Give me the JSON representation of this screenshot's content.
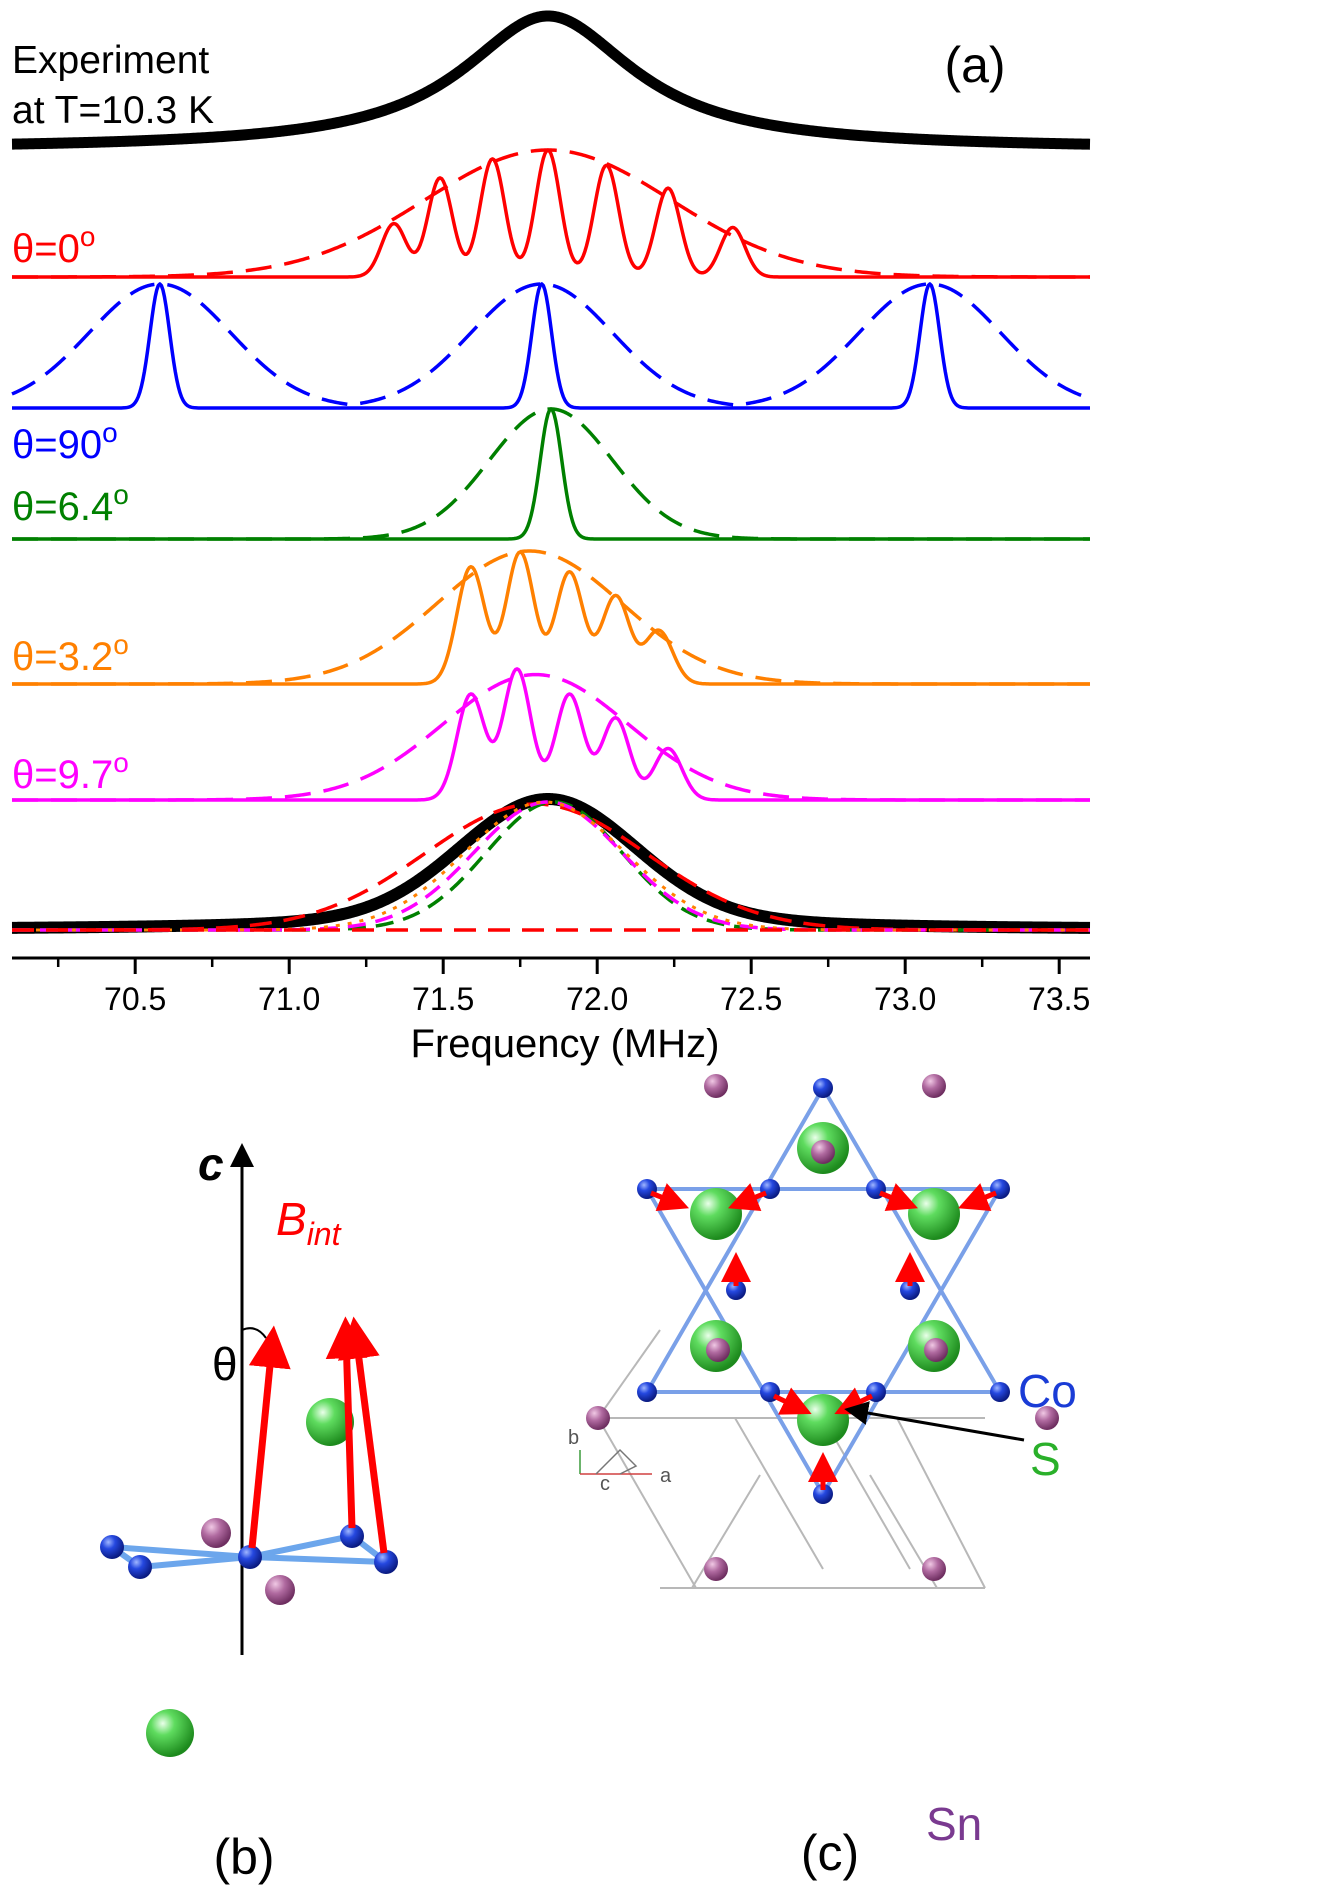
{
  "chart_data": {
    "type": "line",
    "panel_label": "(a)",
    "xlabel": "Frequency (MHz)",
    "xlim": [
      70.1,
      73.6
    ],
    "xticks": [
      70.5,
      71.0,
      71.5,
      72.0,
      72.5,
      73.0,
      73.5
    ],
    "xtick_labels": [
      "70.5",
      "71.0",
      "71.5",
      "72.0",
      "72.5",
      "73.0",
      "73.5"
    ],
    "experiment_label_line1": "Experiment",
    "experiment_label_line2": "at T=10.3 K",
    "series": [
      {
        "id": "experiment",
        "label": "",
        "color": "#000000",
        "style": "solid",
        "center": 71.84,
        "gamma": 0.34,
        "height": 1.0
      },
      {
        "id": "theta0",
        "label": "θ=0",
        "label_sup": "o",
        "color": "#ff0000",
        "dashed": {
          "center": 71.84,
          "sigma": 0.4,
          "height": 1.0
        },
        "peaks": [
          [
            71.34,
            0.42
          ],
          [
            71.49,
            0.78
          ],
          [
            71.66,
            0.93
          ],
          [
            71.84,
            1.0
          ],
          [
            72.03,
            0.88
          ],
          [
            72.23,
            0.7
          ],
          [
            72.44,
            0.39
          ]
        ],
        "peak_width": 0.04
      },
      {
        "id": "theta90",
        "label": "θ=90",
        "label_sup": "o",
        "color": "#0000ff",
        "dashed_centers": [
          70.58,
          71.82,
          73.08
        ],
        "dashed_sigma": 0.23,
        "peaks": [
          [
            70.58,
            1.0
          ],
          [
            71.82,
            1.0
          ],
          [
            73.08,
            1.0
          ]
        ],
        "peak_width": 0.032
      },
      {
        "id": "theta6.4",
        "label": "θ=6.4",
        "label_sup": "o",
        "color": "#008000",
        "dashed": {
          "center": 71.85,
          "sigma": 0.2,
          "height": 1.0
        },
        "peaks": [
          [
            71.85,
            1.0
          ]
        ],
        "peak_width": 0.035
      },
      {
        "id": "theta3.2",
        "label": "θ=3.2",
        "label_sup": "o",
        "color": "#ff8000",
        "dashed": {
          "center": 71.78,
          "sigma": 0.3,
          "height": 1.0
        },
        "peaks": [
          [
            71.59,
            0.88
          ],
          [
            71.75,
            0.99
          ],
          [
            71.91,
            0.84
          ],
          [
            72.06,
            0.66
          ],
          [
            72.2,
            0.4
          ]
        ],
        "peak_width": 0.045
      },
      {
        "id": "theta9.7",
        "label": "θ=9.7",
        "label_sup": "o",
        "color": "#ff00ff",
        "dashed": {
          "center": 71.8,
          "sigma": 0.3,
          "height": 0.95
        },
        "peaks": [
          [
            71.59,
            0.8
          ],
          [
            71.74,
            0.99
          ],
          [
            71.91,
            0.8
          ],
          [
            72.06,
            0.62
          ],
          [
            72.23,
            0.39
          ]
        ],
        "peak_width": 0.045
      },
      {
        "id": "sum",
        "label": "",
        "color": "#000000",
        "components": [
          {
            "color": "#000000",
            "style": "solid-thick",
            "center": 71.84,
            "sigma": 0.28
          },
          {
            "color": "#ff0000",
            "style": "dashed",
            "center": 71.8,
            "sigma": 0.36
          },
          {
            "color": "#008000",
            "style": "dashed",
            "center": 71.86,
            "sigma": 0.22
          },
          {
            "color": "#ff00ff",
            "style": "dashed",
            "center": 71.84,
            "sigma": 0.24
          },
          {
            "color": "#ff8000",
            "style": "dotted",
            "center": 71.83,
            "sigma": 0.26
          }
        ]
      }
    ]
  },
  "panel_b": {
    "label": "(b)",
    "axis_label": "c",
    "field_label": "B",
    "field_subscript": "int",
    "angle_label": "θ"
  },
  "panel_c": {
    "label": "(c)",
    "legend_co": "Co",
    "legend_s": "S",
    "legend_sn": "Sn",
    "axis_b": "b",
    "axis_c": "c",
    "axis_a": "a"
  },
  "colors": {
    "co": "#1a3cd6",
    "s": "#3cc83c",
    "sn": "#a0508c",
    "bond": "#7aa0e8",
    "arrow": "#ff0000"
  }
}
